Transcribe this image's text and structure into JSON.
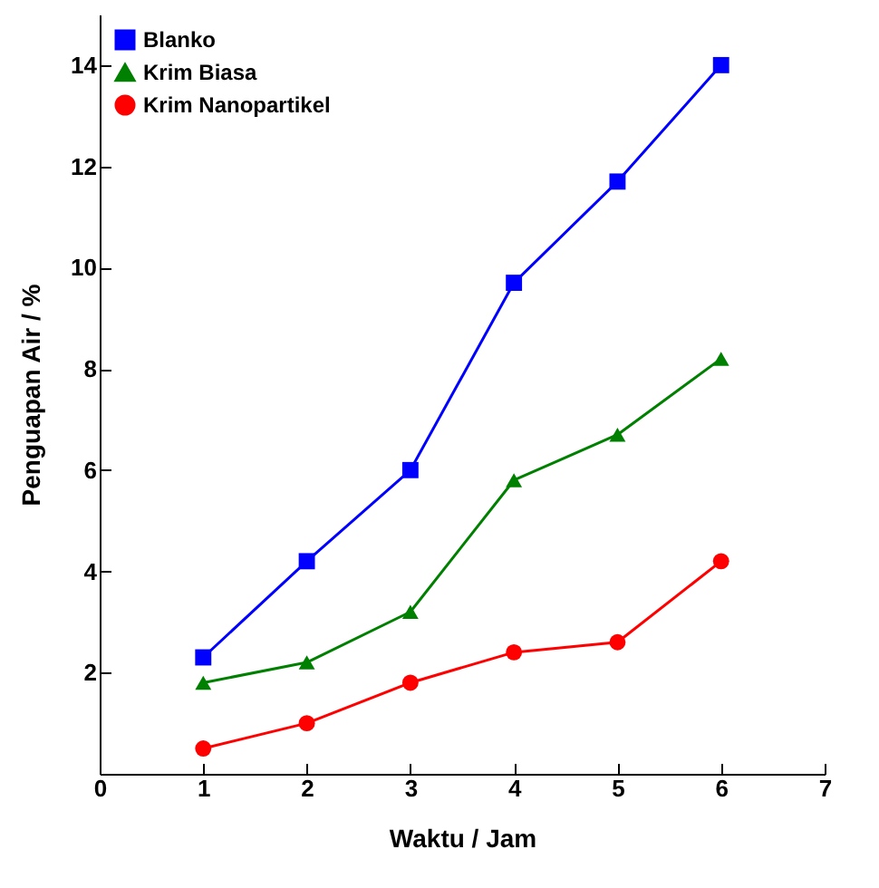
{
  "chart_data": {
    "type": "line",
    "xlabel": "Waktu / Jam",
    "ylabel": "Penguapan Air / %",
    "x": [
      1,
      2,
      3,
      4,
      5,
      6
    ],
    "series": [
      {
        "name": "Blanko",
        "color": "#0000ff",
        "marker": "square",
        "values": [
          2.3,
          4.2,
          6.0,
          9.7,
          11.7,
          14.0
        ]
      },
      {
        "name": "Krim Biasa",
        "color": "#008000",
        "marker": "triangle",
        "values": [
          1.8,
          2.2,
          3.2,
          5.8,
          6.7,
          8.2
        ]
      },
      {
        "name": "Krim Nanopartikel",
        "color": "#ff0000",
        "marker": "circle",
        "values": [
          0.5,
          1.0,
          1.8,
          2.4,
          2.6,
          4.2
        ]
      }
    ],
    "xlim": [
      0,
      7
    ],
    "xticks": [
      0,
      1,
      2,
      3,
      4,
      5,
      6,
      7
    ],
    "ylim": [
      0,
      15
    ],
    "yticks": [
      2,
      4,
      6,
      8,
      10,
      12,
      14
    ],
    "grid": false,
    "legend": "top left",
    "line_style": "solid"
  }
}
